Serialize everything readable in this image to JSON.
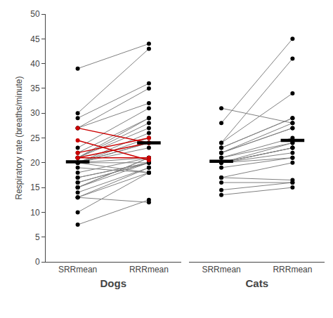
{
  "chart_data": [
    {
      "type": "line",
      "xlabel": "Dogs",
      "ylabel": "Respiratory rate (breaths/minute)",
      "categories": [
        "SRRmean",
        "RRRmean"
      ],
      "ylim": [
        0,
        50
      ],
      "yticks": [
        0,
        5,
        10,
        15,
        20,
        25,
        30,
        35,
        40,
        45,
        50
      ],
      "grid": false,
      "tick_labels": true,
      "series": [
        {
          "type": "line",
          "color": "#808080",
          "colors": [
            "#000000",
            "#000000"
          ],
          "marker": "circle",
          "values": [
            [
              7.5,
              12.5
            ],
            [
              10,
              18
            ],
            [
              13,
              18
            ],
            [
              13,
              12
            ],
            [
              13,
              19
            ],
            [
              14,
              19
            ],
            [
              15,
              20
            ],
            [
              15,
              21
            ],
            [
              15,
              21
            ],
            [
              16,
              20
            ],
            [
              16,
              20
            ],
            [
              17,
              20
            ],
            [
              17,
              20
            ],
            [
              18,
              21
            ],
            [
              19,
              18
            ],
            [
              20,
              18
            ],
            [
              20,
              20
            ],
            [
              20,
              21
            ],
            [
              20,
              23
            ],
            [
              20,
              24
            ],
            [
              20,
              24
            ],
            [
              20,
              25
            ],
            [
              20,
              26
            ],
            [
              21,
              27
            ],
            [
              21,
              28
            ],
            [
              21,
              29
            ],
            [
              22,
              29
            ],
            [
              23,
              31
            ],
            [
              27,
              32
            ],
            [
              27,
              35
            ],
            [
              29,
              36
            ],
            [
              30,
              43
            ],
            [
              39,
              44
            ]
          ]
        },
        {
          "type": "line",
          "color": "#cc0000",
          "colors": [
            "#cc0000",
            "#cc0000"
          ],
          "marker": "circle",
          "values": [
            [
              21,
              21
            ],
            [
              21,
              24
            ],
            [
              22,
              25
            ],
            [
              24.5,
              20.5
            ],
            [
              27,
              24
            ]
          ]
        },
        {
          "type": "mean",
          "color": "#000000",
          "values": [
            20.2,
            24.0
          ]
        }
      ]
    },
    {
      "type": "line",
      "xlabel": "Cats",
      "categories": [
        "SRRmean",
        "RRRmean"
      ],
      "ylim": [
        0,
        50
      ],
      "yticks": [
        0,
        5,
        10,
        15,
        20,
        25,
        30,
        35,
        40,
        45,
        50
      ],
      "grid": false,
      "tick_labels": "x",
      "series": [
        {
          "type": "line",
          "color": "#808080",
          "colors": [
            "#000000",
            "#000000"
          ],
          "marker": "circle",
          "values": [
            [
              13.5,
              15
            ],
            [
              14.5,
              16
            ],
            [
              16,
              16
            ],
            [
              17,
              16.5
            ],
            [
              17,
              20
            ],
            [
              19,
              21
            ],
            [
              20,
              21
            ],
            [
              20,
              22
            ],
            [
              20,
              23
            ],
            [
              20,
              23
            ],
            [
              20,
              23
            ],
            [
              20,
              24
            ],
            [
              21,
              24
            ],
            [
              21,
              25
            ],
            [
              22,
              27
            ],
            [
              22,
              27
            ],
            [
              22,
              28
            ],
            [
              23,
              29
            ],
            [
              23,
              29
            ],
            [
              24,
              34
            ],
            [
              24,
              41
            ],
            [
              28,
              45
            ],
            [
              31,
              28
            ]
          ]
        },
        {
          "type": "mean",
          "color": "#000000",
          "values": [
            20.3,
            24.5
          ]
        }
      ]
    }
  ]
}
